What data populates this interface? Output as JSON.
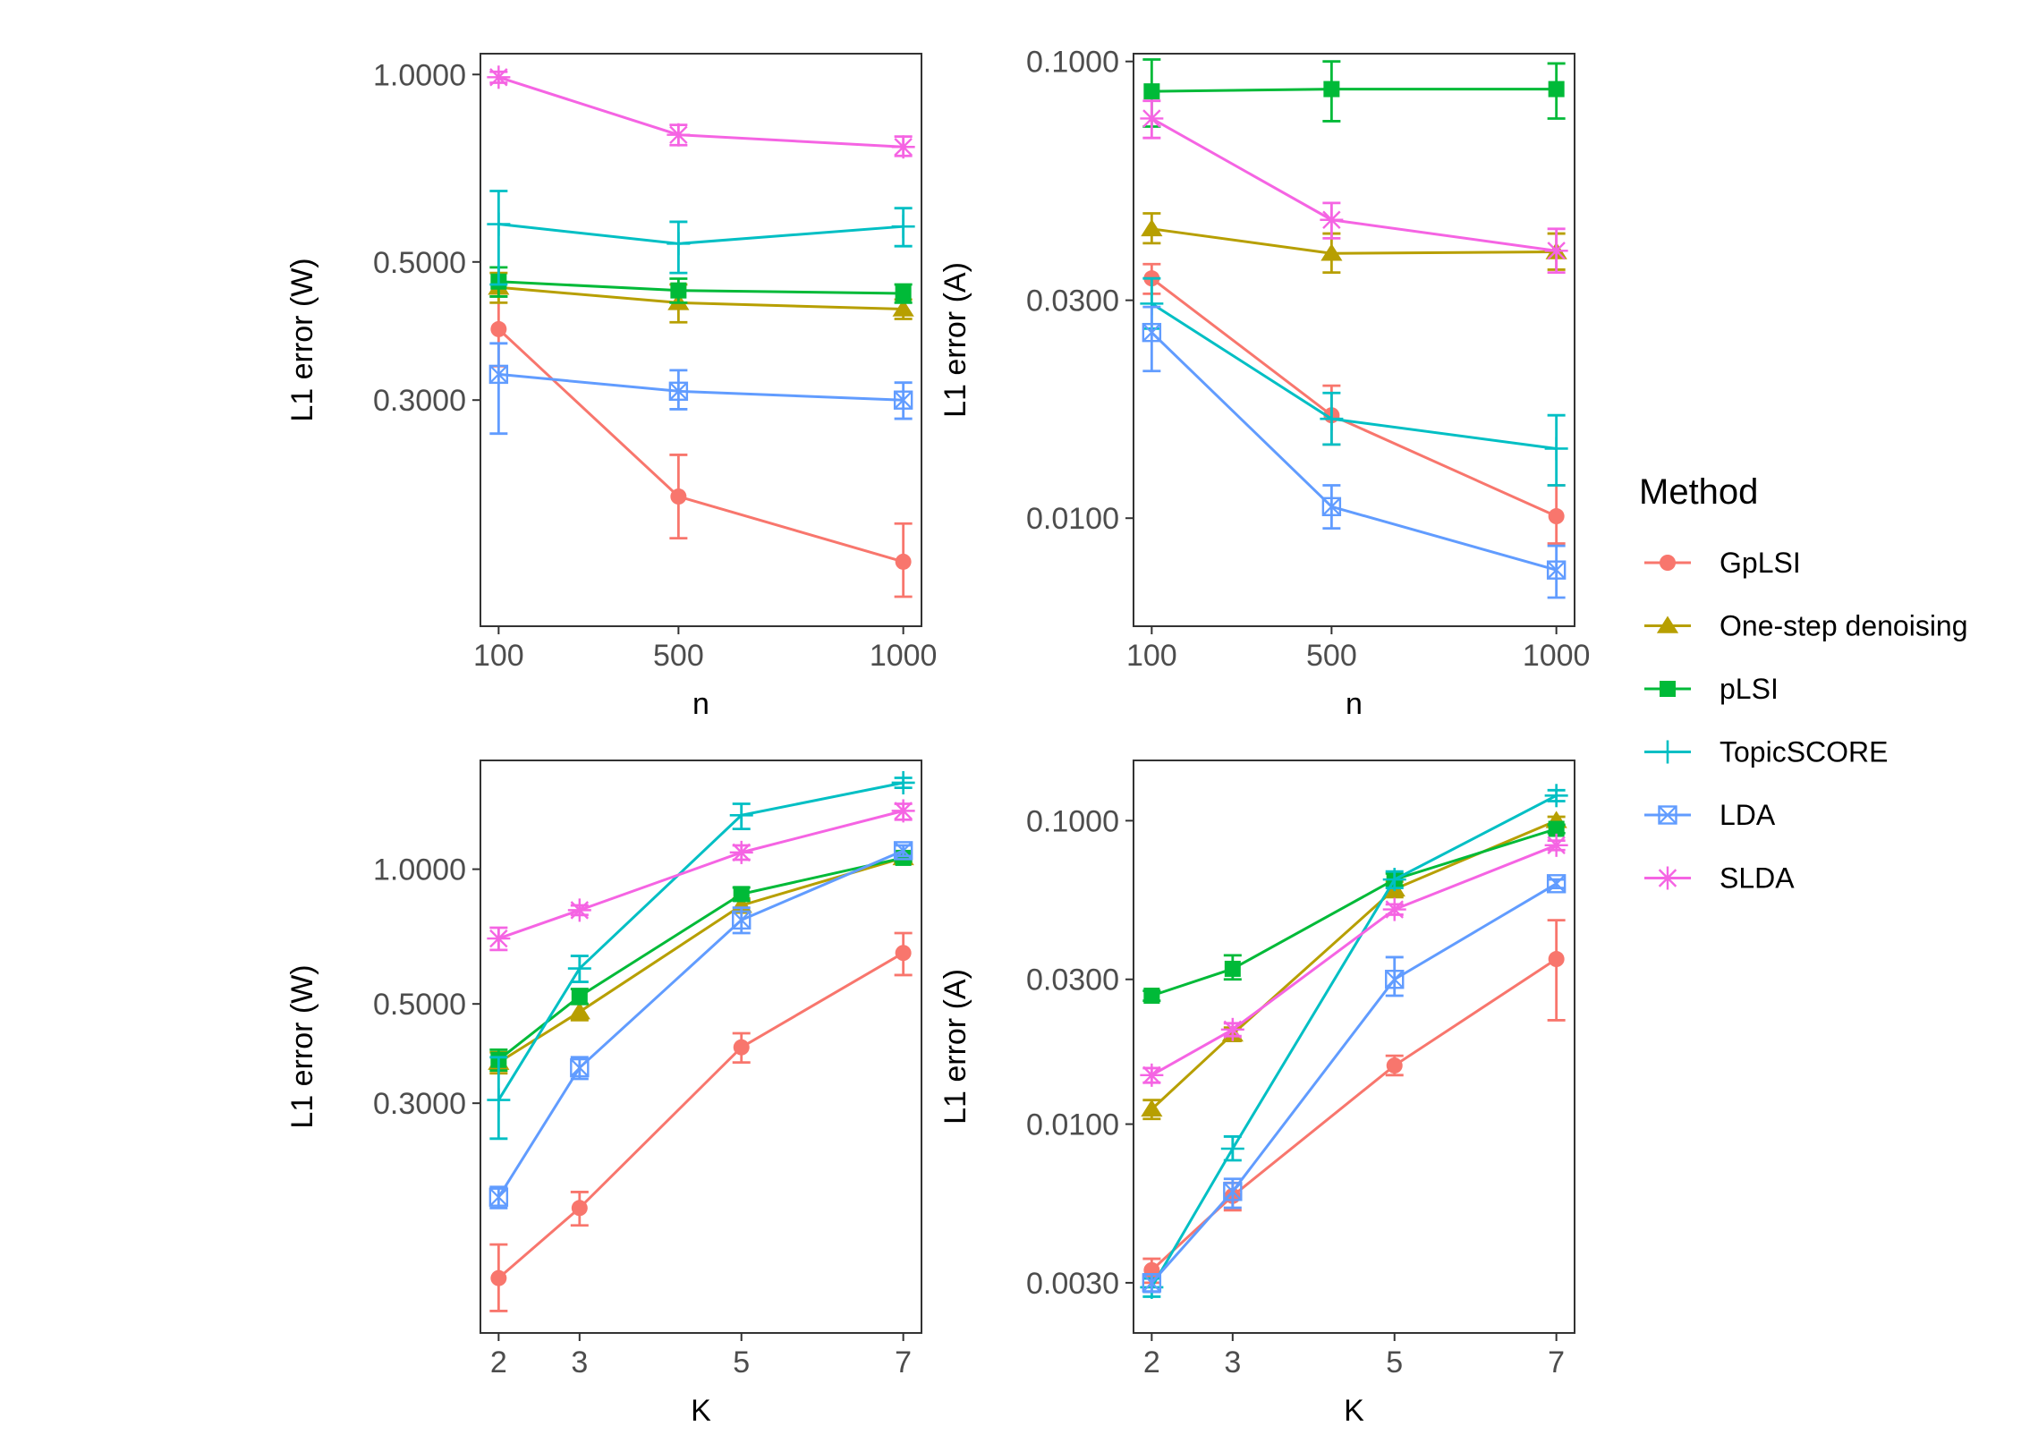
{
  "legend": {
    "title": "Method",
    "entries": [
      {
        "name": "GpLSI",
        "color": "#F8766D",
        "shape": "circle"
      },
      {
        "name": "One-step denoising",
        "color": "#B79F00",
        "shape": "triangle"
      },
      {
        "name": "pLSI",
        "color": "#00BA38",
        "shape": "square"
      },
      {
        "name": "TopicSCORE",
        "color": "#00BFC4",
        "shape": "plus"
      },
      {
        "name": "LDA",
        "color": "#619CFF",
        "shape": "boxed-x"
      },
      {
        "name": "SLDA",
        "color": "#F564E3",
        "shape": "asterisk"
      }
    ]
  },
  "chart_data": [
    {
      "type": "line",
      "xlabel": "n",
      "ylabel": "L1 error (W)",
      "yscale": "log",
      "x": [
        100,
        500,
        1000
      ],
      "x_ticks": [
        "100",
        "500",
        "1000"
      ],
      "y_ticks": [
        {
          "v": 1.0,
          "label": "1.0000"
        },
        {
          "v": 0.5,
          "label": "0.5000"
        },
        {
          "v": 0.3,
          "label": "0.3000"
        }
      ],
      "ylim": [
        0.13,
        1.08
      ],
      "grid": false,
      "legend": "right",
      "series": [
        {
          "name": "GpLSI",
          "values": [
            0.39,
            0.21,
            0.165
          ],
          "err_lo": [
            0.34,
            0.18,
            0.145
          ],
          "err_hi": [
            0.44,
            0.245,
            0.19
          ]
        },
        {
          "name": "One-step denoising",
          "values": [
            0.455,
            0.43,
            0.42
          ],
          "err_lo": [
            0.43,
            0.4,
            0.405
          ],
          "err_hi": [
            0.48,
            0.46,
            0.435
          ]
        },
        {
          "name": "pLSI",
          "values": [
            0.465,
            0.45,
            0.445
          ],
          "err_lo": [
            0.44,
            0.43,
            0.43
          ],
          "err_hi": [
            0.49,
            0.47,
            0.46
          ]
        },
        {
          "name": "TopicSCORE",
          "values": [
            0.575,
            0.535,
            0.57
          ],
          "err_lo": [
            0.46,
            0.48,
            0.53
          ],
          "err_hi": [
            0.65,
            0.58,
            0.61
          ]
        },
        {
          "name": "LDA",
          "values": [
            0.33,
            0.31,
            0.3
          ],
          "err_lo": [
            0.265,
            0.29,
            0.28
          ],
          "err_hi": [
            0.37,
            0.335,
            0.32
          ]
        },
        {
          "name": "SLDA",
          "values": [
            0.99,
            0.8,
            0.765
          ],
          "err_lo": [
            0.97,
            0.77,
            0.74
          ],
          "err_hi": [
            1.01,
            0.83,
            0.795
          ]
        }
      ]
    },
    {
      "type": "line",
      "xlabel": "n",
      "ylabel": "L1 error (A)",
      "yscale": "log",
      "x": [
        100,
        500,
        1000
      ],
      "x_ticks": [
        "100",
        "500",
        "1000"
      ],
      "y_ticks": [
        {
          "v": 0.1,
          "label": "0.1000"
        },
        {
          "v": 0.03,
          "label": "0.0300"
        },
        {
          "v": 0.01,
          "label": "0.0100"
        }
      ],
      "ylim": [
        0.0058,
        0.104
      ],
      "grid": false,
      "legend": "right",
      "series": [
        {
          "name": "GpLSI",
          "values": [
            0.0335,
            0.0168,
            0.0101
          ],
          "err_lo": [
            0.031,
            0.0145,
            0.0088
          ],
          "err_hi": [
            0.036,
            0.0195,
            0.0118
          ]
        },
        {
          "name": "One-step denoising",
          "values": [
            0.043,
            0.038,
            0.0383
          ],
          "err_lo": [
            0.04,
            0.0345,
            0.035
          ],
          "err_hi": [
            0.0465,
            0.042,
            0.042
          ]
        },
        {
          "name": "pLSI",
          "values": [
            0.086,
            0.087,
            0.087
          ],
          "err_lo": [
            0.072,
            0.074,
            0.075
          ],
          "err_hi": [
            0.101,
            0.1,
            0.099
          ]
        },
        {
          "name": "TopicSCORE",
          "values": [
            0.0295,
            0.0165,
            0.0142
          ],
          "err_lo": [
            0.026,
            0.0145,
            0.0118
          ],
          "err_hi": [
            0.0335,
            0.0188,
            0.0168
          ]
        },
        {
          "name": "LDA",
          "values": [
            0.0255,
            0.0106,
            0.0077
          ],
          "err_lo": [
            0.021,
            0.0095,
            0.0067
          ],
          "err_hi": [
            0.029,
            0.0118,
            0.0087
          ]
        },
        {
          "name": "SLDA",
          "values": [
            0.075,
            0.045,
            0.0385
          ],
          "err_lo": [
            0.068,
            0.041,
            0.0345
          ],
          "err_hi": [
            0.082,
            0.049,
            0.043
          ]
        }
      ]
    },
    {
      "type": "line",
      "xlabel": "K",
      "ylabel": "L1 error (W)",
      "yscale": "log",
      "x": [
        2,
        3,
        5,
        7
      ],
      "x_ticks": [
        "2",
        "3",
        "5",
        "7"
      ],
      "y_ticks": [
        {
          "v": 1.0,
          "label": "1.0000"
        },
        {
          "v": 0.5,
          "label": "0.5000"
        },
        {
          "v": 0.3,
          "label": "0.3000"
        }
      ],
      "ylim": [
        0.092,
        1.75
      ],
      "grid": false,
      "legend": "right",
      "series": [
        {
          "name": "GpLSI",
          "values": [
            0.122,
            0.175,
            0.4,
            0.65
          ],
          "err_lo": [
            0.103,
            0.16,
            0.37,
            0.58
          ],
          "err_hi": [
            0.145,
            0.19,
            0.43,
            0.72
          ]
        },
        {
          "name": "One-step denoising",
          "values": [
            0.37,
            0.48,
            0.83,
            1.06
          ],
          "err_lo": [
            0.35,
            0.46,
            0.8,
            1.04
          ],
          "err_hi": [
            0.39,
            0.5,
            0.86,
            1.08
          ]
        },
        {
          "name": "pLSI",
          "values": [
            0.375,
            0.52,
            0.88,
            1.06
          ],
          "err_lo": [
            0.355,
            0.5,
            0.85,
            1.04
          ],
          "err_hi": [
            0.395,
            0.54,
            0.91,
            1.08
          ]
        },
        {
          "name": "TopicSCORE",
          "values": [
            0.305,
            0.6,
            1.32,
            1.56
          ],
          "err_lo": [
            0.25,
            0.56,
            1.23,
            1.52
          ],
          "err_hi": [
            0.38,
            0.64,
            1.4,
            1.6
          ]
        },
        {
          "name": "LDA",
          "values": [
            0.185,
            0.36,
            0.77,
            1.1
          ],
          "err_lo": [
            0.175,
            0.34,
            0.72,
            1.07
          ],
          "err_hi": [
            0.195,
            0.38,
            0.82,
            1.13
          ]
        },
        {
          "name": "SLDA",
          "values": [
            0.7,
            0.81,
            1.09,
            1.35
          ],
          "err_lo": [
            0.66,
            0.79,
            1.05,
            1.29
          ],
          "err_hi": [
            0.74,
            0.83,
            1.13,
            1.4
          ]
        }
      ]
    },
    {
      "type": "line",
      "xlabel": "K",
      "ylabel": "L1 error (A)",
      "yscale": "log",
      "x": [
        2,
        3,
        5,
        7
      ],
      "x_ticks": [
        "2",
        "3",
        "5",
        "7"
      ],
      "y_ticks": [
        {
          "v": 0.1,
          "label": "0.1000"
        },
        {
          "v": 0.03,
          "label": "0.0300"
        },
        {
          "v": 0.01,
          "label": "0.0100"
        },
        {
          "v": 0.003,
          "label": "0.0030"
        }
      ],
      "ylim": [
        0.00205,
        0.158
      ],
      "grid": false,
      "legend": "right",
      "series": [
        {
          "name": "GpLSI",
          "values": [
            0.0033,
            0.0058,
            0.0156,
            0.035
          ],
          "err_lo": [
            0.003,
            0.0052,
            0.0145,
            0.022
          ],
          "err_hi": [
            0.0036,
            0.0064,
            0.0168,
            0.047
          ]
        },
        {
          "name": "One-step denoising",
          "values": [
            0.0112,
            0.0198,
            0.0595,
            0.1
          ],
          "err_lo": [
            0.0104,
            0.0188,
            0.056,
            0.097
          ],
          "err_hi": [
            0.012,
            0.0208,
            0.063,
            0.103
          ]
        },
        {
          "name": "pLSI",
          "values": [
            0.0265,
            0.0325,
            0.064,
            0.094
          ],
          "err_lo": [
            0.0255,
            0.03,
            0.061,
            0.091
          ],
          "err_hi": [
            0.0275,
            0.036,
            0.067,
            0.097
          ]
        },
        {
          "name": "TopicSCORE",
          "values": [
            0.0029,
            0.0083,
            0.064,
            0.121
          ],
          "err_lo": [
            0.0027,
            0.0076,
            0.06,
            0.116
          ],
          "err_hi": [
            0.0031,
            0.0091,
            0.068,
            0.126
          ]
        },
        {
          "name": "LDA",
          "values": [
            0.003,
            0.006,
            0.03,
            0.062
          ],
          "err_lo": [
            0.0028,
            0.0053,
            0.0265,
            0.06
          ],
          "err_hi": [
            0.0032,
            0.0066,
            0.0355,
            0.064
          ]
        },
        {
          "name": "SLDA",
          "values": [
            0.0145,
            0.0205,
            0.051,
            0.083
          ],
          "err_lo": [
            0.0137,
            0.0195,
            0.049,
            0.08
          ],
          "err_hi": [
            0.0153,
            0.0215,
            0.053,
            0.086
          ]
        }
      ]
    }
  ]
}
